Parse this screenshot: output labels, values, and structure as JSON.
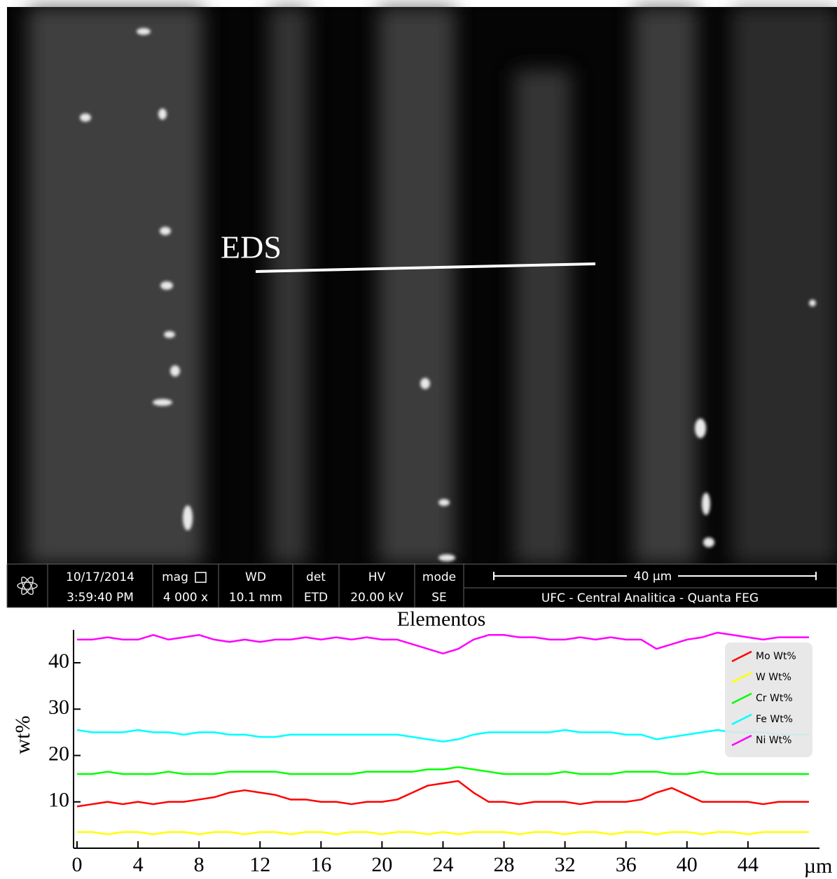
{
  "sem_image": {
    "label": "EDS"
  },
  "info_bar": {
    "date": "10/17/2014",
    "time": "3:59:40 PM",
    "mag_label": "mag",
    "mag": "4 000 x",
    "wd_label": "WD",
    "wd": "10.1 mm",
    "det_label": "det",
    "det": "ETD",
    "hv_label": "HV",
    "hv": "20.00 kV",
    "mode_label": "mode",
    "mode": "SE",
    "scale": "40 µm",
    "facility": "UFC - Central Analitica - Quanta FEG"
  },
  "chart_data": {
    "type": "line",
    "title": "Elementos",
    "ylabel": "wt%",
    "xlabel": "µm",
    "x": [
      0,
      1,
      2,
      3,
      4,
      5,
      6,
      7,
      8,
      9,
      10,
      11,
      12,
      13,
      14,
      15,
      16,
      17,
      18,
      19,
      20,
      21,
      22,
      23,
      24,
      25,
      26,
      27,
      28,
      29,
      30,
      31,
      32,
      33,
      34,
      35,
      36,
      37,
      38,
      39,
      40,
      41,
      42,
      43,
      44,
      45,
      46,
      47,
      48
    ],
    "xlim": [
      0,
      48.6
    ],
    "xticks": [
      0,
      4,
      8,
      12,
      16,
      20,
      24,
      28,
      32,
      36,
      40,
      44
    ],
    "ylim": [
      0,
      47.1
    ],
    "yticks": [
      10,
      20,
      30,
      40
    ],
    "legend": "upper right",
    "series": [
      {
        "name": "Mo Wt%",
        "color": "#ff0000",
        "values": [
          9,
          9.5,
          10,
          9.5,
          10,
          9.5,
          10,
          10,
          10.5,
          11,
          12,
          12.5,
          12,
          11.5,
          10.5,
          10.5,
          10,
          10,
          9.5,
          10,
          10,
          10.5,
          12,
          13.5,
          14,
          14.5,
          12,
          10,
          10,
          9.5,
          10,
          10,
          10,
          9.5,
          10,
          10,
          10,
          10.5,
          12,
          13,
          11.5,
          10,
          10,
          10,
          10,
          9.5,
          10,
          10,
          10
        ]
      },
      {
        "name": "W Wt%",
        "color": "#ffff00",
        "values": [
          3.5,
          3.5,
          3,
          3.5,
          3.5,
          3,
          3.5,
          3.5,
          3,
          3.5,
          3.5,
          3,
          3.5,
          3.5,
          3,
          3.5,
          3.5,
          3,
          3.5,
          3.5,
          3,
          3.5,
          3.5,
          3,
          3.5,
          3,
          3.5,
          3.5,
          3.5,
          3,
          3.5,
          3.5,
          3,
          3.5,
          3.5,
          3,
          3.5,
          3.5,
          3,
          3.5,
          3.5,
          3,
          3.5,
          3.5,
          3,
          3.5,
          3.5,
          3.5,
          3.5
        ]
      },
      {
        "name": "Cr Wt%",
        "color": "#00ff00",
        "values": [
          16,
          16,
          16.5,
          16,
          16,
          16,
          16.5,
          16,
          16,
          16,
          16.5,
          16.5,
          16.5,
          16.5,
          16,
          16,
          16,
          16,
          16,
          16.5,
          16.5,
          16.5,
          16.5,
          17,
          17,
          17.5,
          17,
          16.5,
          16,
          16,
          16,
          16,
          16.5,
          16,
          16,
          16,
          16.5,
          16.5,
          16.5,
          16,
          16,
          16.5,
          16,
          16,
          16,
          16,
          16,
          16,
          16
        ]
      },
      {
        "name": "Fe Wt%",
        "color": "#00ffff",
        "values": [
          25.5,
          25,
          25,
          25,
          25.5,
          25,
          25,
          24.5,
          25,
          25,
          24.5,
          24.5,
          24,
          24,
          24.5,
          24.5,
          24.5,
          24.5,
          24.5,
          24.5,
          24.5,
          24.5,
          24,
          23.5,
          23,
          23.5,
          24.5,
          25,
          25,
          25,
          25,
          25,
          25.5,
          25,
          25,
          25,
          24.5,
          24.5,
          23.5,
          24,
          24.5,
          25,
          25.5,
          25,
          25,
          25,
          24.5,
          24.5,
          24.5
        ]
      },
      {
        "name": "Ni Wt%",
        "color": "#ff00ff",
        "values": [
          45,
          45,
          45.5,
          45,
          45,
          46,
          45,
          45.5,
          46,
          45,
          44.5,
          45,
          44.5,
          45,
          45,
          45.5,
          45,
          45.5,
          45,
          45.5,
          45,
          45,
          44,
          43,
          42,
          43,
          45,
          46,
          46,
          45.5,
          45.5,
          45,
          45,
          45.5,
          45,
          45.5,
          45,
          45,
          43,
          44,
          45,
          45.5,
          46.5,
          46,
          45.5,
          45,
          45.5,
          45.5,
          45.5
        ]
      }
    ]
  }
}
